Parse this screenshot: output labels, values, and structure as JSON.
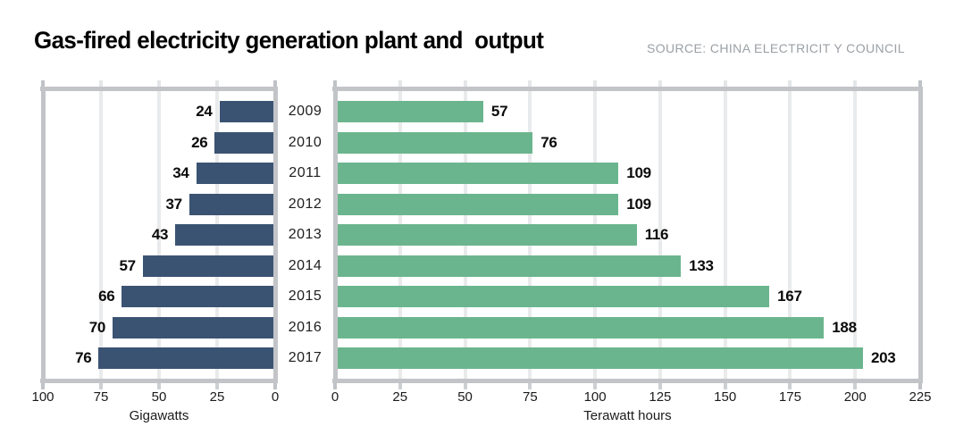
{
  "header": {
    "title": "Gas-fired electricity generation plant and  output",
    "source": "SOURCE: CHINA ELECTRICIT Y COUNCIL"
  },
  "chart_data": [
    {
      "name": "installed-capacity",
      "type": "bar",
      "orientation": "horizontal",
      "categories": [
        "2009",
        "2010",
        "2011",
        "2012",
        "2013",
        "2014",
        "2015",
        "2016",
        "2017"
      ],
      "values": [
        24,
        26,
        34,
        37,
        43,
        57,
        66,
        70,
        76
      ],
      "title": "",
      "xlabel": "Gigawatts",
      "ylabel": "",
      "xlim": [
        100,
        0
      ],
      "xticks": [
        100,
        75,
        50,
        25,
        0
      ],
      "axis_reversed": true,
      "grid": true,
      "bar_color": "#3b5373",
      "value_labels_side": "start"
    },
    {
      "name": "output",
      "type": "bar",
      "orientation": "horizontal",
      "categories": [
        "2009",
        "2010",
        "2011",
        "2012",
        "2013",
        "2014",
        "2015",
        "2016",
        "2017"
      ],
      "values": [
        57,
        76,
        109,
        109,
        116,
        133,
        167,
        188,
        203
      ],
      "title": "",
      "xlabel": "Terawatt hours",
      "ylabel": "",
      "xlim": [
        0,
        225
      ],
      "xticks": [
        0,
        25,
        50,
        75,
        100,
        125,
        150,
        175,
        200,
        225
      ],
      "axis_reversed": false,
      "grid": true,
      "bar_color": "#6bb58e",
      "value_labels_side": "end"
    }
  ],
  "colors": {
    "frame": "#c2c4c8",
    "gridline": "#e9eaeb",
    "tick_top": "#e4e6e8",
    "tick_bottom": "#cdd0d3",
    "tick_edge": "#bfc2c6",
    "title": "#000000",
    "source": "#9ba0a5",
    "bar_navy": "#3b5373",
    "bar_green": "#6bb58e"
  }
}
